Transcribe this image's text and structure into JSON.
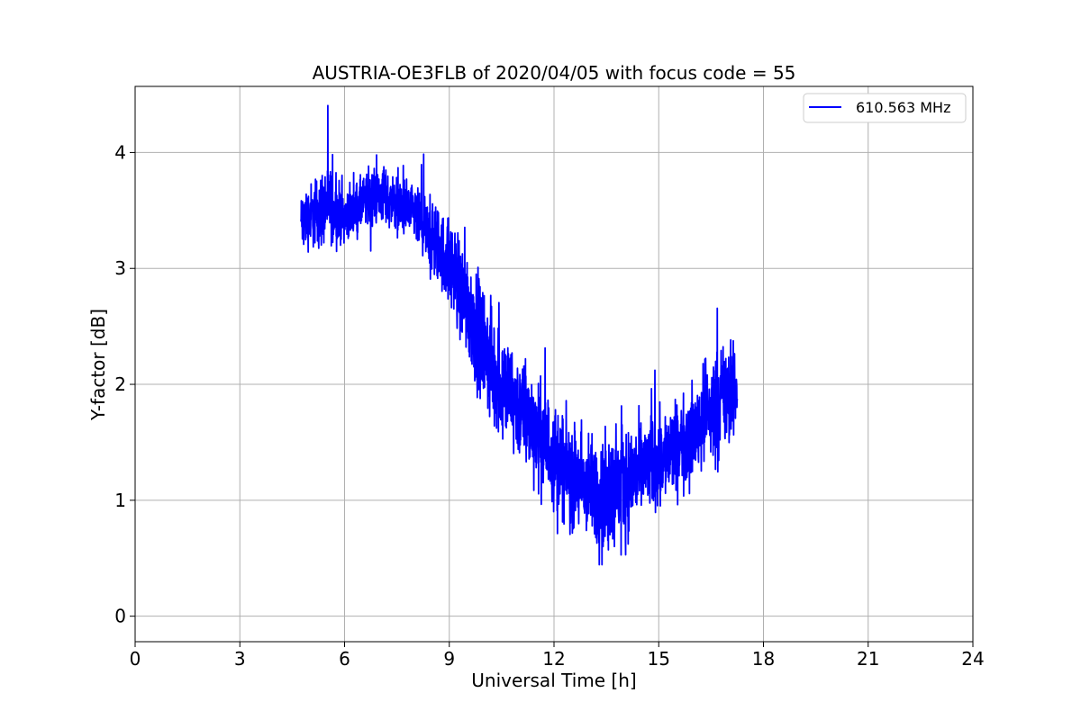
{
  "chart_data": {
    "type": "line",
    "title": "AUSTRIA-OE3FLB of 2020/04/05 with focus code = 55",
    "xlabel": "Universal Time [h]",
    "ylabel": "Y-factor [dB]",
    "xlim": [
      0,
      24
    ],
    "ylim": [
      -0.22,
      4.57
    ],
    "xticks": [
      0,
      3,
      6,
      9,
      12,
      15,
      18,
      21,
      24
    ],
    "yticks": [
      0,
      1,
      2,
      3,
      4
    ],
    "grid": true,
    "legend_position": "top-right",
    "series": [
      {
        "name": "610.563 MHz",
        "color": "#0000ff",
        "noise_envelope_note_removed": true,
        "x": [
          4.75,
          5.0,
          5.25,
          5.5,
          5.75,
          6.0,
          6.25,
          6.5,
          6.75,
          7.0,
          7.25,
          7.5,
          7.75,
          8.0,
          8.25,
          8.5,
          8.75,
          9.0,
          9.25,
          9.5,
          9.75,
          10.0,
          10.25,
          10.5,
          10.75,
          11.0,
          11.25,
          11.5,
          11.75,
          12.0,
          12.25,
          12.5,
          12.75,
          13.0,
          13.25,
          13.5,
          13.75,
          14.0,
          14.25,
          14.5,
          14.75,
          15.0,
          15.25,
          15.5,
          15.75,
          16.0,
          16.25,
          16.5,
          16.75,
          17.0,
          17.25
        ],
        "y": [
          3.4,
          3.45,
          3.5,
          3.55,
          3.5,
          3.45,
          3.5,
          3.55,
          3.6,
          3.65,
          3.6,
          3.55,
          3.5,
          3.45,
          3.35,
          3.25,
          3.15,
          3.05,
          2.9,
          2.7,
          2.5,
          2.3,
          2.15,
          2.0,
          1.9,
          1.8,
          1.7,
          1.6,
          1.5,
          1.4,
          1.3,
          1.2,
          1.15,
          1.1,
          1.05,
          1.05,
          1.1,
          1.15,
          1.2,
          1.25,
          1.3,
          1.35,
          1.4,
          1.45,
          1.5,
          1.6,
          1.7,
          1.8,
          1.85,
          1.9,
          1.95
        ],
        "noise_amplitude": [
          0.35,
          0.4,
          0.45,
          0.5,
          0.4,
          0.3,
          0.3,
          0.35,
          0.35,
          0.35,
          0.35,
          0.35,
          0.35,
          0.35,
          0.4,
          0.45,
          0.5,
          0.55,
          0.6,
          0.65,
          0.7,
          0.7,
          0.7,
          0.7,
          0.65,
          0.65,
          0.65,
          0.65,
          0.65,
          0.65,
          0.65,
          0.65,
          0.65,
          0.65,
          0.65,
          0.7,
          0.7,
          0.7,
          0.65,
          0.6,
          0.6,
          0.6,
          0.55,
          0.55,
          0.55,
          0.55,
          0.6,
          0.65,
          0.7,
          0.6,
          0.5
        ]
      }
    ]
  }
}
